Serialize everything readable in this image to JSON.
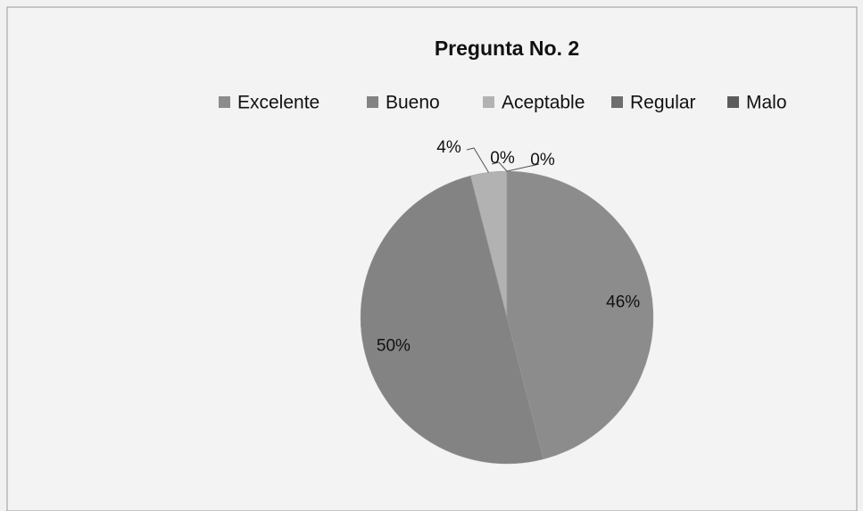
{
  "chart_data": {
    "type": "pie",
    "title": "Pregunta No. 2",
    "categories": [
      "Excelente",
      "Bueno",
      "Aceptable",
      "Regular",
      "Malo"
    ],
    "values": [
      46,
      50,
      4,
      0,
      0
    ],
    "value_labels": [
      "46%",
      "50%",
      "4%",
      "0%",
      "0%"
    ],
    "colors": [
      "#8c8c8c",
      "#838383",
      "#b2b2b2",
      "#6e6e6e",
      "#5c5c5c"
    ],
    "legend": "top"
  }
}
